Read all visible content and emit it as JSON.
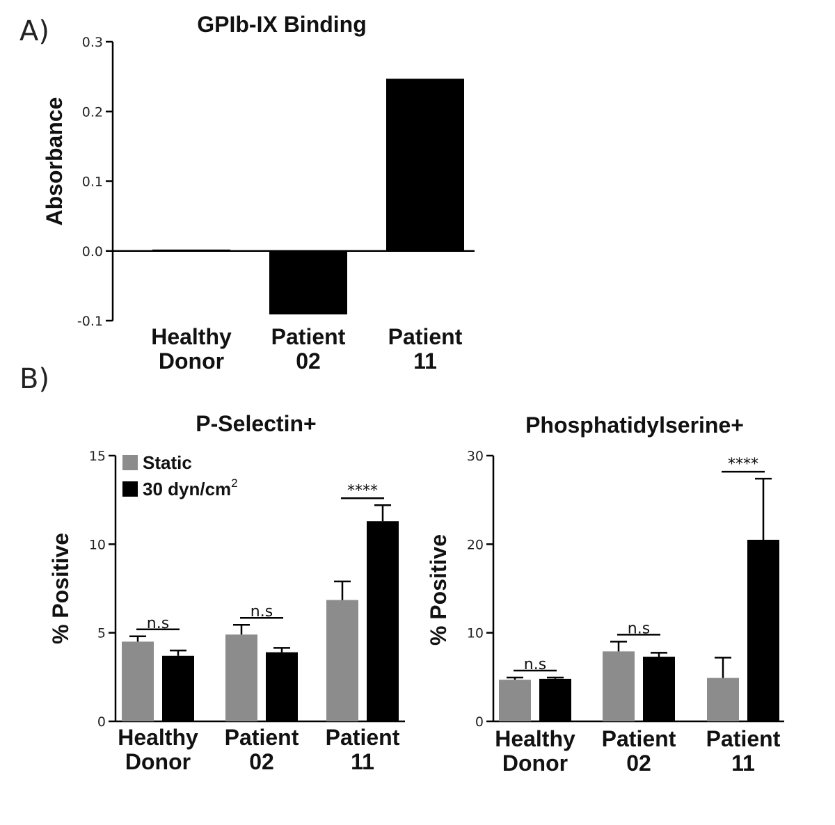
{
  "panels": {
    "a": "A)",
    "b": "B)"
  },
  "chart_data": [
    {
      "type": "bar",
      "title": "GPIb-IX Binding",
      "ylabel": "Absorbance",
      "xlabel": "",
      "ylim": [
        -0.1,
        0.3
      ],
      "yticks": [
        -0.1,
        0.0,
        0.1,
        0.2,
        0.3
      ],
      "ytick_labels": [
        "-0.1",
        "0.0",
        "0.1",
        "0.2",
        "0.3"
      ],
      "categories": [
        [
          "Healthy",
          "Donor"
        ],
        [
          "Patient",
          "02"
        ],
        [
          "Patient",
          "11"
        ]
      ],
      "values": [
        0.002,
        -0.091,
        0.247
      ],
      "color": "#000000"
    },
    {
      "type": "bar",
      "title": "P-Selectin+",
      "ylabel": "% Positive",
      "xlabel": "",
      "ylim": [
        0,
        15
      ],
      "yticks": [
        0,
        5,
        10,
        15
      ],
      "ytick_labels": [
        "0",
        "5",
        "10",
        "15"
      ],
      "categories": [
        [
          "Healthy",
          "Donor"
        ],
        [
          "Patient",
          "02"
        ],
        [
          "Patient",
          "11"
        ]
      ],
      "legend": {
        "position": "top-left",
        "entries": [
          {
            "label": "Static",
            "sup": "",
            "color": "#8c8c8c"
          },
          {
            "label": "30 dyn/cm",
            "sup": "2",
            "color": "#000000"
          }
        ]
      },
      "series": [
        {
          "name": "Static",
          "color": "#8c8c8c",
          "values": [
            4.5,
            4.9,
            6.85
          ],
          "errors": [
            0.3,
            0.55,
            1.05
          ]
        },
        {
          "name": "30 dyn/cm2",
          "color": "#000000",
          "values": [
            3.7,
            3.9,
            11.3
          ],
          "errors": [
            0.3,
            0.25,
            0.9
          ]
        }
      ],
      "significance": [
        "n.s",
        "n.s",
        "****"
      ]
    },
    {
      "type": "bar",
      "title": "Phosphatidylserine+",
      "ylabel": "% Positive",
      "xlabel": "",
      "ylim": [
        0,
        30
      ],
      "yticks": [
        0,
        10,
        20,
        30
      ],
      "ytick_labels": [
        "0",
        "10",
        "20",
        "30"
      ],
      "categories": [
        [
          "Healthy",
          "Donor"
        ],
        [
          "Patient",
          "02"
        ],
        [
          "Patient",
          "11"
        ]
      ],
      "series": [
        {
          "name": "Static",
          "color": "#8c8c8c",
          "values": [
            4.7,
            7.9,
            4.9
          ],
          "errors": [
            0.25,
            1.1,
            2.3
          ]
        },
        {
          "name": "30 dyn/cm2",
          "color": "#000000",
          "values": [
            4.8,
            7.3,
            20.5
          ],
          "errors": [
            0.15,
            0.45,
            6.9
          ]
        }
      ],
      "significance": [
        "n.s",
        "n.s",
        "****"
      ]
    }
  ]
}
